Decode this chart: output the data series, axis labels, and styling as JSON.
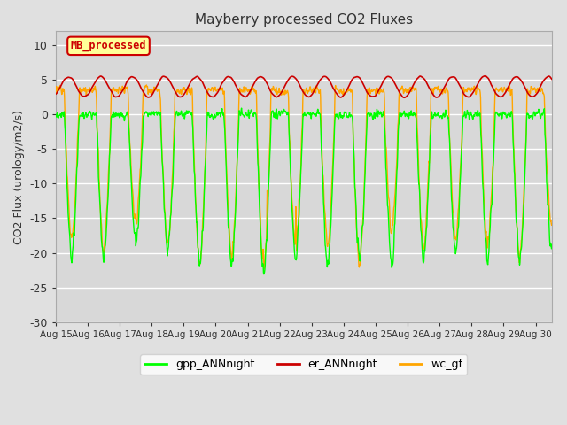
{
  "title": "Mayberry processed CO2 Fluxes",
  "ylabel": "CO2 Flux (urology/m2/s)",
  "ylim": [
    -30,
    12
  ],
  "yticks": [
    -30,
    -25,
    -20,
    -15,
    -10,
    -5,
    0,
    5,
    10
  ],
  "xlim": [
    0,
    15.5
  ],
  "xtick_labels": [
    "Aug 15",
    "Aug 16",
    "Aug 17",
    "Aug 18",
    "Aug 19",
    "Aug 20",
    "Aug 21",
    "Aug 22",
    "Aug 23",
    "Aug 24",
    "Aug 25",
    "Aug 26",
    "Aug 27",
    "Aug 28",
    "Aug 29",
    "Aug 30"
  ],
  "bg_color": "#e0e0e0",
  "plot_bg_color": "#d8d8d8",
  "gpp_color": "#00ff00",
  "er_color": "#cc0000",
  "wc_color": "#ffa500",
  "legend_box_color": "#ffff99",
  "legend_box_edge": "#cc0000",
  "inset_label": "MB_processed",
  "inset_label_color": "#cc0000",
  "legend_entries": [
    "gpp_ANNnight",
    "er_ANNnight",
    "wc_gf"
  ],
  "n_days": 16,
  "points_per_day": 96
}
